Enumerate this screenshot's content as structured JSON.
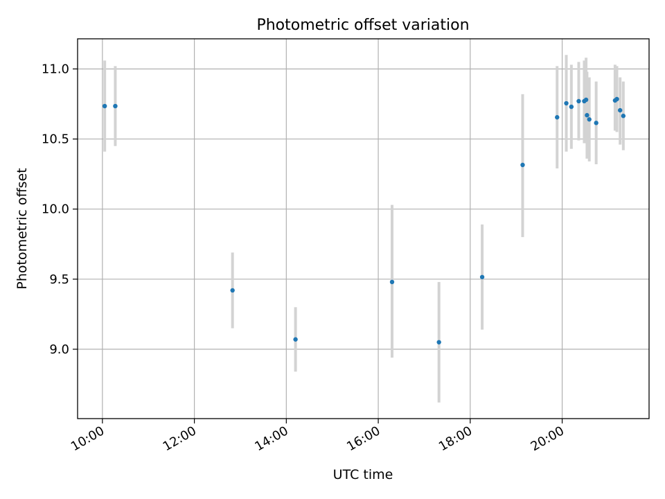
{
  "chart_data": {
    "type": "scatter",
    "title": "Photometric offset variation",
    "xlabel": "UTC time",
    "ylabel": "Photometric offset",
    "xlim_hours": [
      9.46,
      21.89
    ],
    "ylim": [
      8.505,
      11.215
    ],
    "x_ticks": [
      {
        "value": 10,
        "label": "10:00"
      },
      {
        "value": 12,
        "label": "12:00"
      },
      {
        "value": 14,
        "label": "14:00"
      },
      {
        "value": 16,
        "label": "16:00"
      },
      {
        "value": 18,
        "label": "18:00"
      },
      {
        "value": 20,
        "label": "20:00"
      }
    ],
    "y_ticks": [
      {
        "value": 9.0,
        "label": "9.0"
      },
      {
        "value": 9.5,
        "label": "9.5"
      },
      {
        "value": 10.0,
        "label": "10.0"
      },
      {
        "value": 10.5,
        "label": "10.5"
      },
      {
        "value": 11.0,
        "label": "11.0"
      }
    ],
    "grid": true,
    "point_color": "#1f77b4",
    "errorbar_color": "#d3d3d3",
    "points": [
      {
        "t": 10.05,
        "y": 10.735,
        "lo": 10.41,
        "hi": 11.06
      },
      {
        "t": 10.28,
        "y": 10.735,
        "lo": 10.45,
        "hi": 11.02
      },
      {
        "t": 12.83,
        "y": 9.42,
        "lo": 9.15,
        "hi": 9.69
      },
      {
        "t": 14.2,
        "y": 9.07,
        "lo": 8.84,
        "hi": 9.3
      },
      {
        "t": 16.3,
        "y": 9.48,
        "lo": 8.94,
        "hi": 10.03
      },
      {
        "t": 17.32,
        "y": 9.05,
        "lo": 8.62,
        "hi": 9.48
      },
      {
        "t": 18.26,
        "y": 9.515,
        "lo": 9.14,
        "hi": 9.89
      },
      {
        "t": 19.14,
        "y": 10.315,
        "lo": 9.8,
        "hi": 10.82
      },
      {
        "t": 19.89,
        "y": 10.655,
        "lo": 10.29,
        "hi": 11.02
      },
      {
        "t": 20.09,
        "y": 10.755,
        "lo": 10.41,
        "hi": 11.1
      },
      {
        "t": 20.2,
        "y": 10.73,
        "lo": 10.43,
        "hi": 11.03
      },
      {
        "t": 20.36,
        "y": 10.77,
        "lo": 10.49,
        "hi": 11.05
      },
      {
        "t": 20.48,
        "y": 10.77,
        "lo": 10.47,
        "hi": 11.06
      },
      {
        "t": 20.52,
        "y": 10.78,
        "lo": 10.47,
        "hi": 11.08
      },
      {
        "t": 20.54,
        "y": 10.67,
        "lo": 10.36,
        "hi": 10.98
      },
      {
        "t": 20.59,
        "y": 10.64,
        "lo": 10.34,
        "hi": 10.94
      },
      {
        "t": 20.74,
        "y": 10.615,
        "lo": 10.32,
        "hi": 10.91
      },
      {
        "t": 21.15,
        "y": 10.775,
        "lo": 10.56,
        "hi": 11.03
      },
      {
        "t": 21.19,
        "y": 10.785,
        "lo": 10.55,
        "hi": 11.02
      },
      {
        "t": 21.26,
        "y": 10.705,
        "lo": 10.46,
        "hi": 10.94
      },
      {
        "t": 21.33,
        "y": 10.665,
        "lo": 10.42,
        "hi": 10.91
      }
    ]
  }
}
